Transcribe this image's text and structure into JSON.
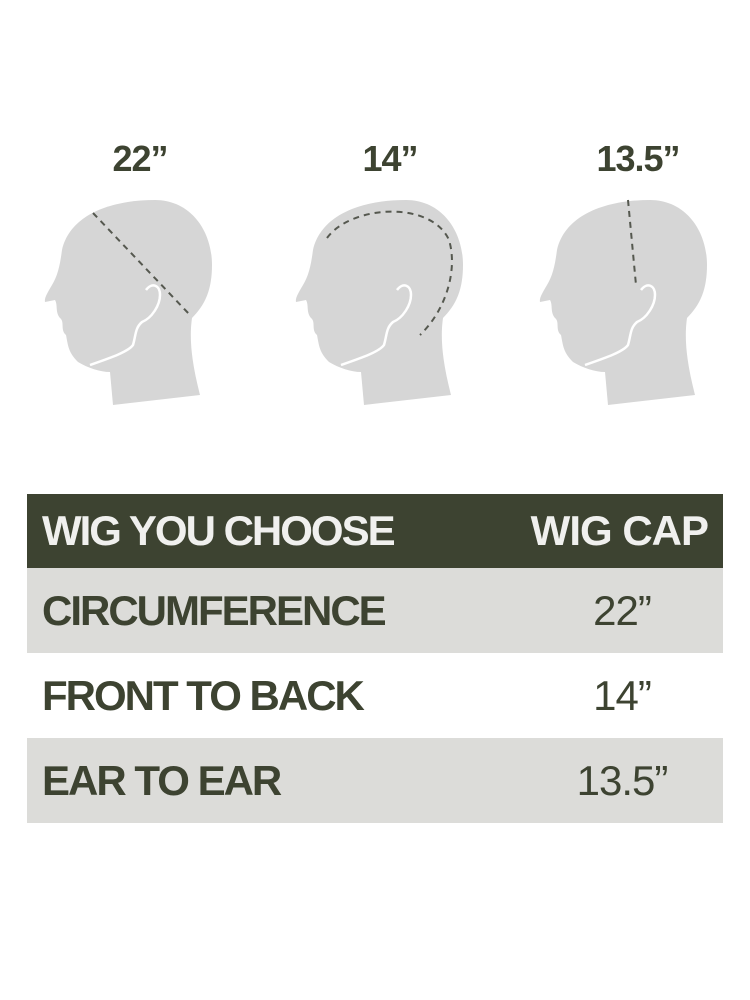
{
  "measurements": [
    {
      "label": "22”",
      "type": "circumference"
    },
    {
      "label": "14”",
      "type": "front-to-back"
    },
    {
      "label": "13.5”",
      "type": "ear-to-ear"
    }
  ],
  "table": {
    "header": [
      "WIG YOU CHOOSE",
      "WIG CAP"
    ],
    "rows": [
      [
        "CIRCUMFERENCE",
        "22”"
      ],
      [
        "FRONT TO BACK",
        "14”"
      ],
      [
        "EAR TO EAR",
        "13.5”"
      ]
    ]
  },
  "colors": {
    "accent": "#3d4331",
    "row_gray": "#dcdcd9",
    "head": "#d6d6d6",
    "dash": "#55584f"
  }
}
